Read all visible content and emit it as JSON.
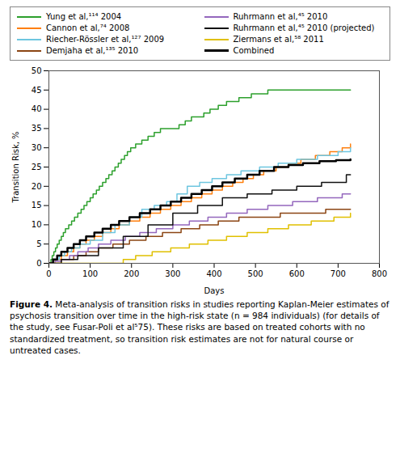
{
  "chart_data": {
    "type": "line",
    "line_style": "step",
    "xlabel": "Days",
    "ylabel": "Transition Risk, %",
    "xlim": [
      0,
      800
    ],
    "ylim": [
      0,
      50
    ],
    "xticks": [
      0,
      100,
      200,
      300,
      400,
      500,
      600,
      700,
      800
    ],
    "yticks": [
      0,
      5,
      10,
      15,
      20,
      25,
      30,
      35,
      40,
      45,
      50
    ],
    "legend": "top",
    "caption": [
      "Figure 4.",
      " Meta-analysis of transition risks in studies reporting Kaplan-Meier estimates of psychosis transition over time in the high-risk state (n = 984 individuals) (for details of the study, see Fusar-Poli et al⁵75). These risks are based on treated cohorts with no standardized treatment, so transition risk estimates are not for natural course or untreated cases."
    ],
    "series": [
      {
        "name": "Yung et al,¹¹⁴ 2004",
        "color": "#2ca02c",
        "x": [
          0,
          5,
          8,
          12,
          16,
          20,
          25,
          30,
          35,
          40,
          48,
          55,
          62,
          70,
          78,
          85,
          92,
          100,
          107,
          115,
          122,
          130,
          138,
          145,
          153,
          160,
          168,
          175,
          183,
          190,
          198,
          210,
          225,
          240,
          255,
          270,
          285,
          300,
          315,
          330,
          345,
          360,
          375,
          390,
          410,
          430,
          460,
          490,
          530,
          570,
          610,
          660,
          730
        ],
        "values": [
          0,
          1,
          2,
          3,
          4,
          5,
          6,
          7,
          8,
          9,
          10,
          11,
          12,
          13,
          14,
          15,
          16,
          17,
          18,
          19,
          20,
          21,
          22,
          23,
          24,
          25,
          26,
          27,
          28,
          29,
          30,
          31,
          32,
          33,
          34,
          35,
          35,
          35,
          36,
          37,
          38,
          38,
          39,
          40,
          41,
          42,
          43,
          44,
          45,
          45,
          45,
          45,
          45
        ]
      },
      {
        "name": "Cannon et al,⁷⁴ 2008",
        "color": "#ff7f0e",
        "x": [
          0,
          15,
          30,
          45,
          60,
          75,
          90,
          110,
          130,
          150,
          170,
          195,
          220,
          245,
          270,
          295,
          320,
          345,
          370,
          395,
          420,
          445,
          470,
          495,
          520,
          550,
          580,
          610,
          645,
          680,
          710,
          730
        ],
        "values": [
          0,
          1,
          2,
          3,
          4,
          5,
          6,
          7,
          8,
          9,
          10,
          11,
          12,
          13,
          14,
          15,
          16,
          17,
          18,
          19,
          20,
          21,
          22,
          23,
          24,
          25,
          26,
          27,
          28,
          29,
          30,
          31
        ]
      },
      {
        "name": "Riecher-Rössler et al,¹²⁷ 2009",
        "color": "#6ec6e0",
        "x": [
          0,
          12,
          25,
          38,
          55,
          75,
          100,
          130,
          160,
          195,
          225,
          255,
          285,
          310,
          335,
          365,
          395,
          430,
          465,
          510,
          555,
          600,
          650,
          700,
          730
        ],
        "values": [
          0,
          1,
          2,
          3,
          4,
          5,
          6,
          8,
          10,
          12,
          14,
          15,
          16,
          18,
          20,
          21,
          22,
          23,
          24,
          25,
          26,
          27,
          28,
          29,
          30
        ]
      },
      {
        "name": "Demjaha et al,¹³⁵ 2010",
        "color": "#8B4513",
        "x": [
          0,
          30,
          60,
          90,
          120,
          155,
          195,
          235,
          275,
          320,
          365,
          410,
          460,
          510,
          560,
          615,
          670,
          730
        ],
        "values": [
          0,
          1,
          2,
          3,
          4,
          5,
          6,
          7,
          8,
          9,
          10,
          11,
          12,
          12,
          13,
          13,
          14,
          14
        ]
      },
      {
        "name": "Ruhrmann et al,⁴⁵ 2010",
        "color": "#9467bd",
        "x": [
          0,
          15,
          30,
          50,
          70,
          95,
          120,
          150,
          185,
          220,
          260,
          300,
          340,
          385,
          430,
          480,
          530,
          590,
          650,
          710,
          730
        ],
        "values": [
          0,
          0.5,
          1,
          2,
          3,
          4,
          5,
          6,
          7,
          8,
          9,
          10,
          11,
          12,
          13,
          14,
          15,
          16,
          17,
          18,
          18
        ]
      },
      {
        "name": "Ruhrmann et al,⁴⁵ 2010 (projected)",
        "color": "#111111",
        "x": [
          0,
          30,
          70,
          120,
          180,
          240,
          300,
          360,
          420,
          480,
          540,
          600,
          660,
          720,
          730
        ],
        "values": [
          0,
          1,
          2,
          4,
          7,
          10,
          13,
          15,
          17,
          18,
          19,
          20,
          21,
          23,
          23
        ]
      },
      {
        "name": "Ziermans et al,⁵⁸ 2011",
        "color": "#e0c000",
        "x": [
          0,
          30,
          60,
          90,
          120,
          150,
          180,
          210,
          250,
          295,
          340,
          385,
          430,
          480,
          530,
          580,
          635,
          690,
          730
        ],
        "values": [
          0,
          0,
          0,
          0,
          0,
          0,
          1,
          2,
          3,
          4,
          5,
          6,
          7,
          8,
          9,
          10,
          11,
          12,
          13
        ]
      },
      {
        "name": "Combined",
        "color": "#000000",
        "x": [
          0,
          10,
          20,
          30,
          45,
          60,
          75,
          90,
          110,
          130,
          150,
          170,
          195,
          220,
          245,
          270,
          295,
          320,
          345,
          370,
          395,
          420,
          450,
          480,
          510,
          545,
          580,
          615,
          655,
          695,
          730
        ],
        "values": [
          0,
          1,
          2,
          3,
          4,
          5,
          6,
          7,
          8,
          9,
          10,
          11,
          12,
          13,
          14,
          15,
          16,
          17,
          18,
          19,
          20,
          21,
          22,
          23,
          24,
          25,
          25.5,
          26,
          26.5,
          26.8,
          27
        ]
      }
    ]
  }
}
